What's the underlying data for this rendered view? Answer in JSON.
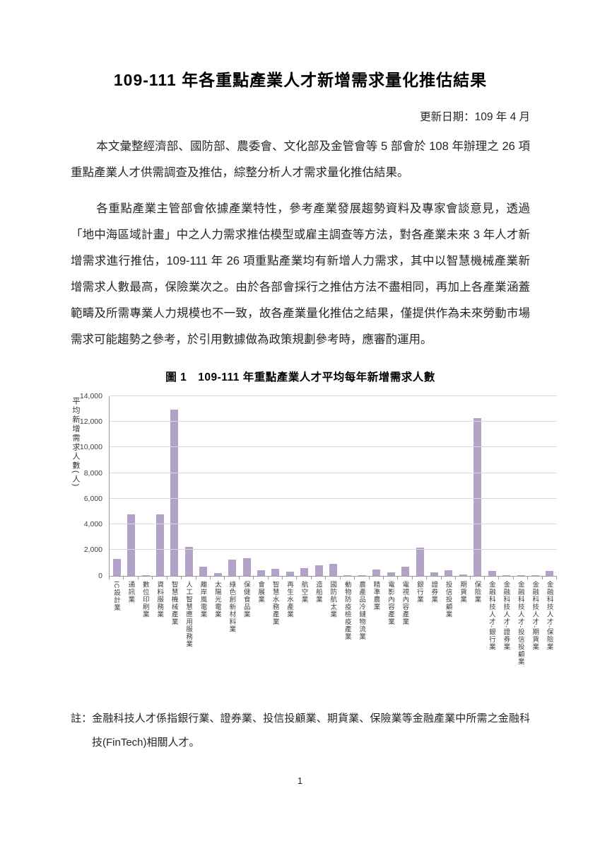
{
  "header": {
    "title": "109-111 年各重點產業人才新增需求量化推估結果",
    "update_date": "更新日期：109 年 4 月"
  },
  "body": {
    "paragraphs": [
      "本文彙整經濟部、國防部、農委會、文化部及金管會等 5 部會於 108 年辦理之 26 項重點產業人才供需調查及推估，綜整分析人才需求量化推估結果。",
      "各重點產業主管部會依據產業特性，參考產業發展趨勢資料及專家會談意見，透過「地中海區域計畫」中之人力需求推估模型或雇主調查等方法，對各產業未來 3 年人才新增需求進行推估，109-111 年 26 項重點產業均有新增人力需求，其中以智慧機械產業新增需求人數最高，保險業次之。由於各部會採行之推估方法不盡相同，再加上各產業涵蓋範疇及所需專業人力規模也不一致，故各產業量化推估之結果，僅提供作為未來勞動市場需求可能趨勢之參考，於引用數據做為政策規劃參考時，應審酌運用。"
    ],
    "note": "註：金融科技人才係指銀行業、證券業、投信投顧業、期貨業、保險業等金融產業中所需之金融科技(FinTech)相關人才。"
  },
  "chart_data": {
    "type": "bar",
    "title": "圖 1　109-111 年重點產業人才平均每年新增需求人數",
    "ylabel": "平均新增需求人數(人)",
    "xlabel": "",
    "ylim": [
      0,
      14000
    ],
    "ytick_step": 2000,
    "ytick_labels": [
      "0",
      "2,000",
      "4,000",
      "6,000",
      "8,000",
      "10,000",
      "12,000",
      "14,000"
    ],
    "grid": true,
    "legend": "none",
    "bar_color": "#b3a2c7",
    "categories": [
      "IC設計業",
      "通訊業",
      "數位印刷業",
      "資料服務業",
      "智慧機械產業",
      "人工智慧應用服務業",
      "離岸風電業",
      "太陽光電業",
      "綠色創新材料業",
      "保健食品業",
      "會展業",
      "智慧水務產業",
      "再生水產業",
      "航空業",
      "造船業",
      "國防航太業",
      "動物防疫檢疫產業",
      "農產品冷鏈物流業",
      "精準農業",
      "電影內容產業",
      "電視內容產業",
      "銀行業",
      "證券業",
      "投信投顧業",
      "期貨業",
      "保險業",
      "金融科技人才-銀行業",
      "金融科技人才-證券業",
      "金融科技人才-投信投顧業",
      "金融科技人才-期貨業",
      "金融科技人才-保險業"
    ],
    "values": [
      1350,
      4800,
      50,
      4800,
      12950,
      2250,
      700,
      240,
      1250,
      1400,
      420,
      550,
      330,
      610,
      800,
      930,
      30,
      30,
      520,
      290,
      730,
      2200,
      280,
      420,
      130,
      12300,
      370,
      50,
      40,
      30,
      370
    ]
  },
  "footer": {
    "page_number": "1"
  }
}
